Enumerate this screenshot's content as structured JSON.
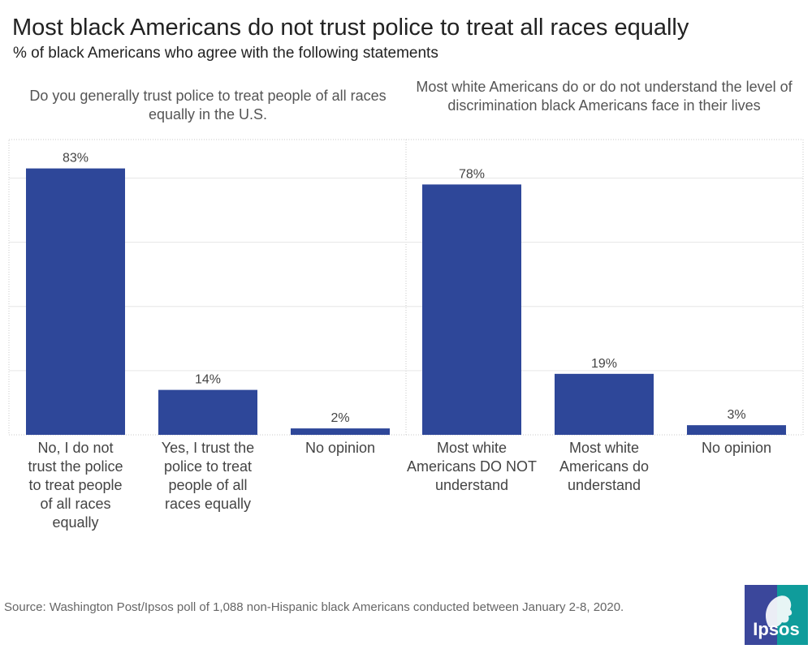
{
  "title": "Most black Americans do not trust police to treat all races equally",
  "subtitle": "% of black Americans who agree with the following statements",
  "source": "Source: Washington Post/Ipsos poll of 1,088 non-Hispanic black Americans conducted between January 2-8, 2020.",
  "logo": {
    "text": "Ipsos",
    "colors": {
      "blue": "#3b479b",
      "teal": "#0f9c9b"
    }
  },
  "bar_color": "#2e4799",
  "chart_data": [
    {
      "type": "bar",
      "title": "Do you generally trust police to treat people of all races equally in the U.S.",
      "categories": [
        "No, I do not trust the police to treat people of all races equally",
        "Yes, I trust the police to treat people of all races equally",
        "No opinion"
      ],
      "values": [
        83,
        14,
        2
      ],
      "value_labels": [
        "83%",
        "14%",
        "2%"
      ],
      "ylim": [
        0,
        92
      ],
      "grid": true
    },
    {
      "type": "bar",
      "title": "Most white Americans do or do not understand the level of discrimination black Americans face in their lives",
      "categories": [
        "Most white Americans DO NOT understand",
        "Most white Americans do understand",
        "No opinion"
      ],
      "values": [
        78,
        19,
        3
      ],
      "value_labels": [
        "78%",
        "19%",
        "3%"
      ],
      "ylim": [
        0,
        92
      ],
      "grid": true
    }
  ]
}
